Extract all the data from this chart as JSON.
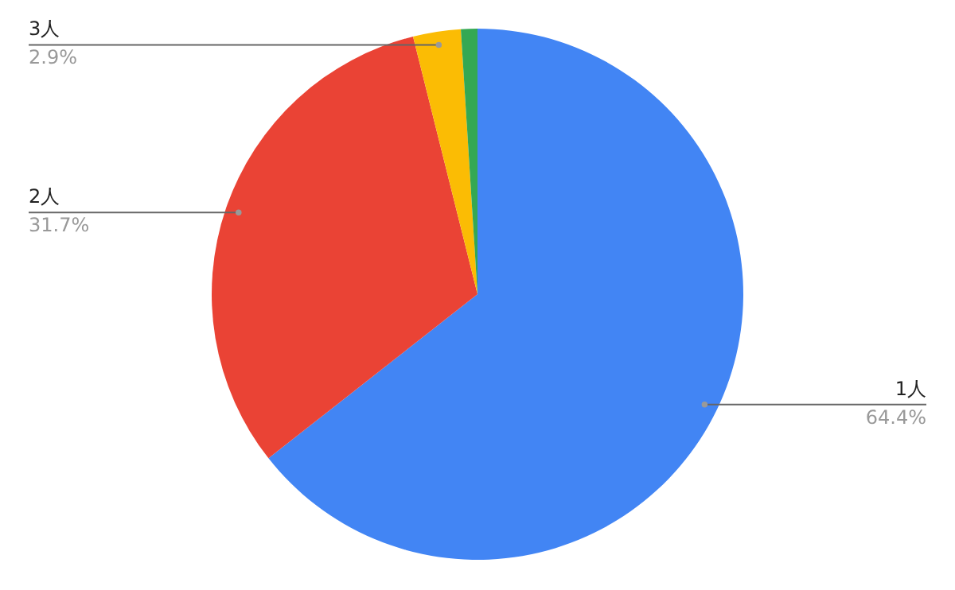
{
  "chart_data": {
    "type": "pie",
    "categories": [
      "1人",
      "2人",
      "3人",
      null
    ],
    "values": [
      64.4,
      31.7,
      2.9,
      1.0
    ],
    "value_labels": [
      "64.4%",
      "31.7%",
      "2.9%",
      null
    ],
    "colors": [
      "#4285f4",
      "#ea4335",
      "#fbbc04",
      "#34a853"
    ]
  }
}
